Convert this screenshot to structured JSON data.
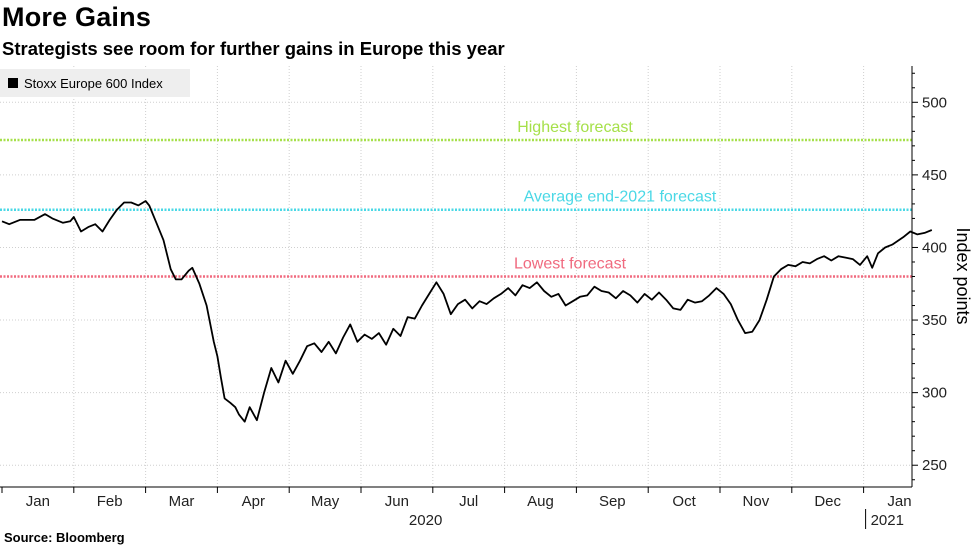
{
  "header": {
    "title": "More Gains",
    "subtitle": "Strategists see room for further gains in Europe this year"
  },
  "footer": {
    "source": "Source: Bloomberg"
  },
  "colors": {
    "series": "#000000",
    "highest": "#a6e04a",
    "average": "#4ad8e6",
    "lowest": "#f06a7f",
    "grid": "#cfcfcf",
    "legend_bg": "#eeeeee"
  },
  "chart_data": {
    "type": "line",
    "title": "More Gains",
    "subtitle": "Strategists see room for further gains in Europe this year",
    "xlabel": "2020",
    "ylabel": "Index points",
    "ylim": [
      235,
      525
    ],
    "yticks": [
      250,
      300,
      350,
      400,
      450,
      500
    ],
    "month_labels": [
      "Jan",
      "Feb",
      "Mar",
      "Apr",
      "May",
      "Jun",
      "Jul",
      "Aug",
      "Sep",
      "Oct",
      "Nov",
      "Dec",
      "Jan"
    ],
    "year_labels": [
      "2020",
      "2021"
    ],
    "legend": "Stoxx Europe 600 Index",
    "grid": true,
    "x_unit": "month index (0 = start of Jan 2020)",
    "x_range": [
      0,
      12.45
    ],
    "reference_lines": [
      {
        "name": "highest",
        "label": "Highest forecast",
        "value": 474
      },
      {
        "name": "average",
        "label": "Average end-2021 forecast",
        "value": 426
      },
      {
        "name": "lowest",
        "label": "Lowest forecast",
        "value": 380
      }
    ],
    "series": [
      {
        "name": "Stoxx Europe 600 Index",
        "points": [
          [
            0.0,
            418
          ],
          [
            0.1,
            416
          ],
          [
            0.25,
            419
          ],
          [
            0.45,
            419
          ],
          [
            0.6,
            423
          ],
          [
            0.7,
            420
          ],
          [
            0.85,
            417
          ],
          [
            0.95,
            418
          ],
          [
            1.0,
            421
          ],
          [
            1.1,
            411
          ],
          [
            1.2,
            414
          ],
          [
            1.3,
            416
          ],
          [
            1.4,
            411
          ],
          [
            1.5,
            419
          ],
          [
            1.6,
            426
          ],
          [
            1.7,
            431
          ],
          [
            1.8,
            431
          ],
          [
            1.9,
            429
          ],
          [
            2.0,
            432
          ],
          [
            2.05,
            429
          ],
          [
            2.15,
            417
          ],
          [
            2.25,
            405
          ],
          [
            2.35,
            385
          ],
          [
            2.42,
            378
          ],
          [
            2.5,
            378
          ],
          [
            2.6,
            384
          ],
          [
            2.65,
            386
          ],
          [
            2.75,
            375
          ],
          [
            2.85,
            360
          ],
          [
            2.95,
            335
          ],
          [
            3.0,
            325
          ],
          [
            3.05,
            310
          ],
          [
            3.1,
            296
          ],
          [
            3.18,
            293
          ],
          [
            3.25,
            290
          ],
          [
            3.3,
            285
          ],
          [
            3.38,
            280
          ],
          [
            3.45,
            290
          ],
          [
            3.55,
            281
          ],
          [
            3.65,
            300
          ],
          [
            3.75,
            317
          ],
          [
            3.85,
            307
          ],
          [
            3.95,
            322
          ],
          [
            4.05,
            313
          ],
          [
            4.15,
            322
          ],
          [
            4.25,
            332
          ],
          [
            4.35,
            334
          ],
          [
            4.45,
            328
          ],
          [
            4.55,
            335
          ],
          [
            4.65,
            327
          ],
          [
            4.75,
            338
          ],
          [
            4.85,
            347
          ],
          [
            4.95,
            335
          ],
          [
            5.05,
            340
          ],
          [
            5.15,
            337
          ],
          [
            5.25,
            341
          ],
          [
            5.35,
            333
          ],
          [
            5.45,
            344
          ],
          [
            5.55,
            339
          ],
          [
            5.65,
            352
          ],
          [
            5.75,
            351
          ],
          [
            5.85,
            360
          ],
          [
            5.95,
            368
          ],
          [
            6.05,
            376
          ],
          [
            6.15,
            368
          ],
          [
            6.25,
            354
          ],
          [
            6.35,
            361
          ],
          [
            6.45,
            364
          ],
          [
            6.55,
            358
          ],
          [
            6.65,
            363
          ],
          [
            6.75,
            361
          ],
          [
            6.85,
            365
          ],
          [
            6.95,
            368
          ],
          [
            7.05,
            372
          ],
          [
            7.15,
            367
          ],
          [
            7.25,
            374
          ],
          [
            7.35,
            372
          ],
          [
            7.45,
            376
          ],
          [
            7.55,
            370
          ],
          [
            7.65,
            366
          ],
          [
            7.75,
            368
          ],
          [
            7.85,
            360
          ],
          [
            7.95,
            363
          ],
          [
            8.05,
            366
          ],
          [
            8.15,
            367
          ],
          [
            8.25,
            373
          ],
          [
            8.35,
            370
          ],
          [
            8.45,
            369
          ],
          [
            8.55,
            365
          ],
          [
            8.65,
            370
          ],
          [
            8.75,
            367
          ],
          [
            8.85,
            362
          ],
          [
            8.95,
            368
          ],
          [
            9.05,
            364
          ],
          [
            9.15,
            369
          ],
          [
            9.25,
            364
          ],
          [
            9.35,
            358
          ],
          [
            9.45,
            357
          ],
          [
            9.55,
            364
          ],
          [
            9.65,
            362
          ],
          [
            9.75,
            363
          ],
          [
            9.85,
            367
          ],
          [
            9.95,
            372
          ],
          [
            10.05,
            368
          ],
          [
            10.15,
            361
          ],
          [
            10.25,
            350
          ],
          [
            10.35,
            341
          ],
          [
            10.45,
            342
          ],
          [
            10.55,
            350
          ],
          [
            10.65,
            364
          ],
          [
            10.75,
            380
          ],
          [
            10.85,
            385
          ],
          [
            10.95,
            388
          ],
          [
            11.05,
            387
          ],
          [
            11.15,
            390
          ],
          [
            11.25,
            389
          ],
          [
            11.35,
            392
          ],
          [
            11.45,
            394
          ],
          [
            11.55,
            391
          ],
          [
            11.65,
            394
          ],
          [
            11.75,
            393
          ],
          [
            11.85,
            392
          ],
          [
            11.95,
            388
          ],
          [
            12.05,
            394
          ],
          [
            12.12,
            386
          ],
          [
            12.2,
            396
          ],
          [
            12.3,
            400
          ],
          [
            12.4,
            402
          ],
          [
            12.55,
            407
          ],
          [
            12.65,
            411
          ],
          [
            12.75,
            409
          ],
          [
            12.85,
            410
          ],
          [
            12.95,
            412
          ]
        ]
      }
    ]
  }
}
